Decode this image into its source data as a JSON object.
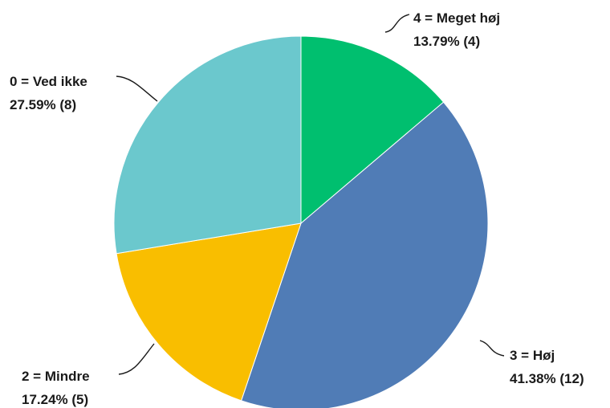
{
  "chart_data": {
    "type": "pie",
    "title": "",
    "slices": [
      {
        "label": "4 = Meget høj",
        "value": 4,
        "percent_label": "13.79% (4)",
        "color": "#00BF6F"
      },
      {
        "label": "3 = Høj",
        "value": 12,
        "percent_label": "41.38% (12)",
        "color": "#507CB6"
      },
      {
        "label": "2 = Mindre",
        "value": 5,
        "percent_label": "17.24% (5)",
        "color": "#F9BE00"
      },
      {
        "label": "0 = Ved ikke",
        "value": 8,
        "percent_label": "27.59% (8)",
        "color": "#6BC8CD"
      }
    ],
    "start_angle_deg": 0,
    "direction": "clockwise",
    "legend": "none"
  }
}
